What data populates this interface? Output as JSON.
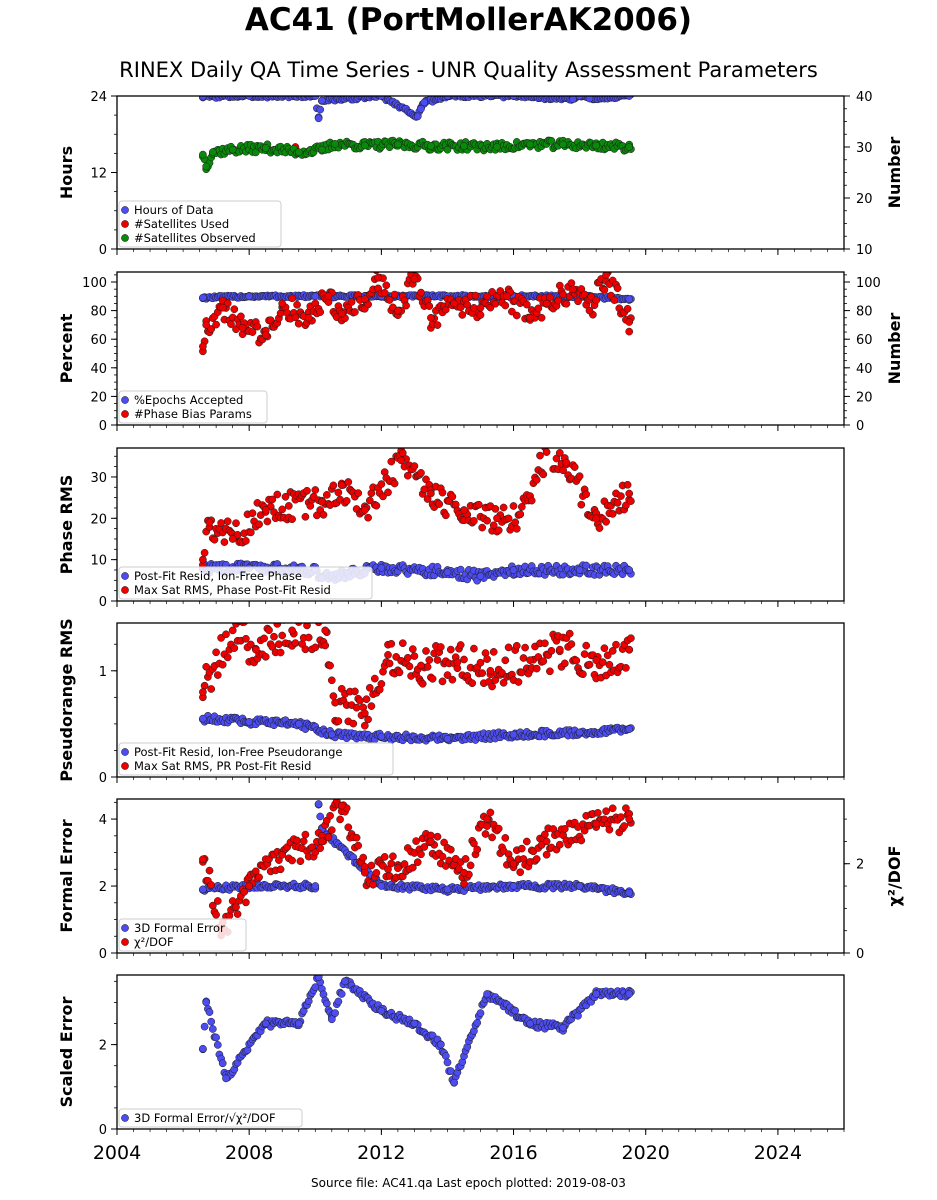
{
  "page": {
    "title": "AC41 (PortMollerAK2006)",
    "subtitle": "RINEX Daily QA Time Series - UNR Quality Assessment Parameters",
    "footer": "Source file: AC41.qa Last epoch plotted: 2019-08-03"
  },
  "colors": {
    "blue": "#4c4cf0",
    "red": "#ee0000",
    "green": "#0a8a0a",
    "edge": "#1a1a1a"
  },
  "chart_data": [
    {
      "type": "scatter",
      "ylabel": "Hours",
      "y2label": "Number",
      "ylim": [
        0,
        24
      ],
      "yticks": [
        0,
        12,
        24
      ],
      "yticklabels": [
        "0",
        "12",
        "24"
      ],
      "y2lim": [
        10,
        40
      ],
      "y2ticks": [
        10,
        20,
        30,
        40
      ],
      "y2ticklabels": [
        "10",
        "20",
        "30",
        "40"
      ],
      "legend_position": "lower-left",
      "series": [
        {
          "name": "Hours of Data",
          "color": "blue",
          "axis": "left",
          "points": [
            [
              2006.6,
              23.9
            ],
            [
              2008.0,
              24.0
            ],
            [
              2010.0,
              24.0
            ],
            [
              2012.0,
              24.0
            ],
            [
              2014.0,
              24.0
            ],
            [
              2016.0,
              24.0
            ],
            [
              2018.0,
              24.0
            ],
            [
              2019.5,
              24.0
            ],
            [
              2010.2,
              23.3
            ],
            [
              2010.1,
              20.5
            ],
            [
              2013.3,
              23.0
            ],
            [
              2013.2,
              22.0
            ],
            [
              2013.1,
              20.8
            ],
            [
              2017.8,
              23.5
            ],
            [
              2018.3,
              23.6
            ]
          ]
        },
        {
          "name": "#Satellites Used",
          "color": "red",
          "axis": "right",
          "points": [
            [
              2009.4,
              30.0
            ]
          ]
        },
        {
          "name": "#Satellites Observed",
          "color": "green",
          "axis": "right",
          "points": [
            [
              2006.6,
              28.5
            ],
            [
              2006.7,
              26.2
            ],
            [
              2006.9,
              29.0
            ],
            [
              2007.5,
              29.5
            ],
            [
              2008.5,
              29.8
            ],
            [
              2009.5,
              29.0
            ],
            [
              2010.2,
              29.5
            ],
            [
              2010.6,
              30.6
            ],
            [
              2011.5,
              30.3
            ],
            [
              2012.5,
              30.5
            ],
            [
              2013.5,
              30.2
            ],
            [
              2014.5,
              30.2
            ],
            [
              2015.5,
              30.0
            ],
            [
              2016.5,
              30.5
            ],
            [
              2017.5,
              30.5
            ],
            [
              2018.5,
              30.3
            ],
            [
              2019.5,
              30.0
            ]
          ]
        }
      ]
    },
    {
      "type": "scatter",
      "ylabel": "Percent",
      "y2label": "Number",
      "ylim": [
        0,
        107
      ],
      "yticks": [
        0,
        20,
        40,
        60,
        80,
        100
      ],
      "yticklabels": [
        "0",
        "20",
        "40",
        "60",
        "80",
        "100"
      ],
      "y2lim": [
        0,
        107
      ],
      "y2ticks": [
        0,
        20,
        40,
        60,
        80,
        100
      ],
      "y2ticklabels": [
        "0",
        "20",
        "40",
        "60",
        "80",
        "100"
      ],
      "legend_position": "lower-left",
      "series": [
        {
          "name": "%Epochs Accepted",
          "color": "blue",
          "axis": "left",
          "points": [
            [
              2006.6,
              89
            ],
            [
              2008.0,
              90
            ],
            [
              2010.0,
              90
            ],
            [
              2012.0,
              90
            ],
            [
              2014.0,
              90
            ],
            [
              2016.0,
              90
            ],
            [
              2018.0,
              90
            ],
            [
              2019.5,
              88
            ]
          ]
        },
        {
          "name": "#Phase Bias Params",
          "color": "red",
          "axis": "right",
          "points": [
            [
              2006.6,
              55
            ],
            [
              2006.7,
              70
            ],
            [
              2007.2,
              82
            ],
            [
              2007.8,
              68
            ],
            [
              2008.5,
              63
            ],
            [
              2009.0,
              85
            ],
            [
              2009.8,
              75
            ],
            [
              2010.4,
              90
            ],
            [
              2010.8,
              78
            ],
            [
              2011.5,
              88
            ],
            [
              2011.9,
              103
            ],
            [
              2012.5,
              80
            ],
            [
              2013.0,
              102
            ],
            [
              2013.5,
              75
            ],
            [
              2014.2,
              85
            ],
            [
              2015.0,
              82
            ],
            [
              2015.8,
              90
            ],
            [
              2016.5,
              75
            ],
            [
              2017.0,
              85
            ],
            [
              2017.8,
              95
            ],
            [
              2018.3,
              80
            ],
            [
              2018.8,
              105
            ],
            [
              2019.5,
              72
            ]
          ]
        }
      ]
    },
    {
      "type": "scatter",
      "ylabel": "Phase RMS",
      "ylim": [
        0,
        37
      ],
      "yticks": [
        0,
        10,
        20,
        30
      ],
      "yticklabels": [
        "0",
        "10",
        "20",
        "30"
      ],
      "legend_position": "lower-left",
      "series": [
        {
          "name": "Post-Fit Resid, Ion-Free Phase",
          "color": "blue",
          "axis": "left",
          "points": [
            [
              2006.6,
              8
            ],
            [
              2008.0,
              8
            ],
            [
              2010.0,
              7.5
            ],
            [
              2010.2,
              5.5
            ],
            [
              2012.0,
              8
            ],
            [
              2014.0,
              7
            ],
            [
              2015.0,
              6
            ],
            [
              2016.0,
              7.5
            ],
            [
              2018.0,
              7.5
            ],
            [
              2019.5,
              7.5
            ]
          ]
        },
        {
          "name": "Max Sat RMS, Phase Post-Fit Resid",
          "color": "red",
          "axis": "left",
          "points": [
            [
              2006.6,
              10
            ],
            [
              2006.8,
              19
            ],
            [
              2007.5,
              15
            ],
            [
              2008.5,
              22
            ],
            [
              2009.2,
              23
            ],
            [
              2010.2,
              24
            ],
            [
              2010.8,
              28
            ],
            [
              2011.5,
              22
            ],
            [
              2012.6,
              34
            ],
            [
              2013.5,
              26
            ],
            [
              2014.5,
              22
            ],
            [
              2015.5,
              20
            ],
            [
              2016.2,
              21
            ],
            [
              2017.0,
              36
            ],
            [
              2017.6,
              33.5
            ],
            [
              2018.5,
              20
            ],
            [
              2019.5,
              26
            ]
          ]
        }
      ]
    },
    {
      "type": "scatter",
      "ylabel": "Pseudorange RMS",
      "ylim": [
        0,
        1.45
      ],
      "yticks": [
        0,
        1
      ],
      "yticklabels": [
        "0",
        "1"
      ],
      "legend_position": "lower-left",
      "series": [
        {
          "name": "Post-Fit Resid, Ion-Free Pseudorange",
          "color": "blue",
          "axis": "left",
          "points": [
            [
              2006.6,
              0.55
            ],
            [
              2008.0,
              0.52
            ],
            [
              2009.5,
              0.5
            ],
            [
              2010.5,
              0.4
            ],
            [
              2012.0,
              0.38
            ],
            [
              2014.0,
              0.36
            ],
            [
              2016.0,
              0.4
            ],
            [
              2018.0,
              0.42
            ],
            [
              2019.5,
              0.45
            ]
          ]
        },
        {
          "name": "Max Sat RMS, PR Post-Fit Resid",
          "color": "red",
          "axis": "left",
          "points": [
            [
              2006.6,
              0.8
            ],
            [
              2007.5,
              1.38
            ],
            [
              2008.2,
              1.2
            ],
            [
              2009.3,
              1.38
            ],
            [
              2010.3,
              1.38
            ],
            [
              2010.6,
              0.7
            ],
            [
              2011.5,
              0.6
            ],
            [
              2012.2,
              1.15
            ],
            [
              2013.2,
              1.05
            ],
            [
              2014.3,
              1.08
            ],
            [
              2015.3,
              1.0
            ],
            [
              2016.5,
              1.1
            ],
            [
              2017.4,
              1.2
            ],
            [
              2018.5,
              1.1
            ],
            [
              2019.5,
              1.2
            ]
          ]
        }
      ]
    },
    {
      "type": "scatter",
      "ylabel": "Formal Error",
      "y2label": "χ²/DOF",
      "ylim": [
        0,
        4.6
      ],
      "yticks": [
        0,
        2,
        4
      ],
      "yticklabels": [
        "0",
        "2",
        "4"
      ],
      "y2lim": [
        0,
        3.45
      ],
      "y2ticks": [
        0,
        2
      ],
      "y2ticklabels": [
        "0",
        "2"
      ],
      "legend_position": "lower-left",
      "series": [
        {
          "name": "3D Formal Error",
          "color": "blue",
          "axis": "left",
          "points": [
            [
              2006.6,
              1.9
            ],
            [
              2008.0,
              2.0
            ],
            [
              2010.0,
              2.0
            ],
            [
              2010.1,
              4.45
            ],
            [
              2010.2,
              3.7
            ],
            [
              2012.0,
              2.0
            ],
            [
              2014.0,
              1.9
            ],
            [
              2016.0,
              2.0
            ],
            [
              2018.0,
              2.0
            ],
            [
              2019.5,
              1.8
            ]
          ]
        },
        {
          "name": "χ²/DOF",
          "color": "red",
          "axis": "right",
          "points": [
            [
              2006.6,
              2.1
            ],
            [
              2007.2,
              0.5
            ],
            [
              2008.0,
              1.5
            ],
            [
              2009.0,
              2.2
            ],
            [
              2010.2,
              2.5
            ],
            [
              2010.8,
              3.3
            ],
            [
              2011.5,
              1.8
            ],
            [
              2012.5,
              1.9
            ],
            [
              2013.5,
              2.5
            ],
            [
              2014.5,
              1.8
            ],
            [
              2015.2,
              3.0
            ],
            [
              2016.0,
              2.0
            ],
            [
              2017.0,
              2.5
            ],
            [
              2018.5,
              2.9
            ],
            [
              2019.5,
              3.0
            ]
          ]
        }
      ]
    },
    {
      "type": "scatter",
      "ylabel": "Scaled Error",
      "ylim": [
        0,
        3.65
      ],
      "yticks": [
        0,
        2
      ],
      "yticklabels": [
        "0",
        "2"
      ],
      "legend_position": "lower-left",
      "series": [
        {
          "name": "3D Formal Error/√χ²/DOF",
          "color": "blue",
          "axis": "left",
          "points": [
            [
              2006.6,
              1.9
            ],
            [
              2006.7,
              3.0
            ],
            [
              2007.3,
              1.2
            ],
            [
              2008.5,
              2.5
            ],
            [
              2009.5,
              2.5
            ],
            [
              2010.1,
              3.6
            ],
            [
              2010.5,
              2.6
            ],
            [
              2010.9,
              3.5
            ],
            [
              2012.0,
              2.8
            ],
            [
              2013.0,
              2.5
            ],
            [
              2013.8,
              2.0
            ],
            [
              2014.2,
              1.1
            ],
            [
              2015.2,
              3.2
            ],
            [
              2016.5,
              2.5
            ],
            [
              2017.5,
              2.4
            ],
            [
              2018.5,
              3.2
            ],
            [
              2019.5,
              3.2
            ]
          ]
        }
      ]
    }
  ],
  "x_axis": {
    "xlim": [
      2004,
      2026
    ],
    "ticks": [
      2004,
      2008,
      2012,
      2016,
      2020,
      2024
    ],
    "ticklabels": [
      "2004",
      "2008",
      "2012",
      "2016",
      "2020",
      "2024"
    ],
    "data_start": 2006.6,
    "data_end": 2019.59
  }
}
